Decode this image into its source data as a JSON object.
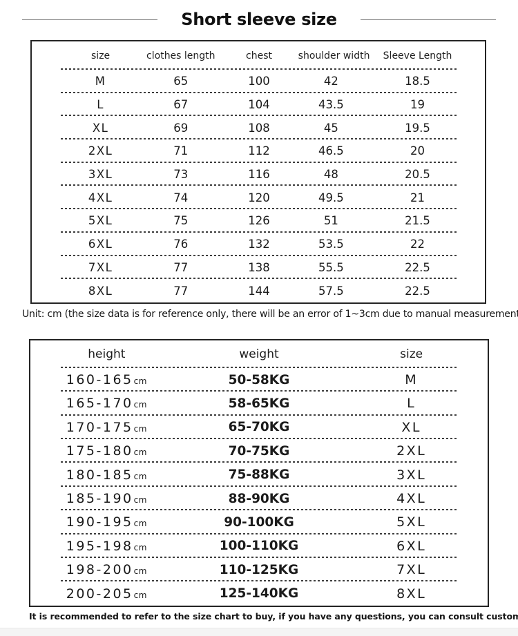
{
  "page": {
    "title": "Short sleeve size",
    "background": "#ffffff",
    "text_color": "#1b1b1b",
    "border_color": "#242424",
    "divider_color": "#8f8f8f",
    "bottom_strip_color": "#f4f4f4"
  },
  "size_table": {
    "headers": [
      "size",
      "clothes length",
      "chest",
      "shoulder width",
      "Sleeve Length"
    ],
    "rows": [
      [
        "M",
        "65",
        "100",
        "42",
        "18.5"
      ],
      [
        "L",
        "67",
        "104",
        "43.5",
        "19"
      ],
      [
        "XL",
        "69",
        "108",
        "45",
        "19.5"
      ],
      [
        "2XL",
        "71",
        "112",
        "46.5",
        "20"
      ],
      [
        "3XL",
        "73",
        "116",
        "48",
        "20.5"
      ],
      [
        "4XL",
        "74",
        "120",
        "49.5",
        "21"
      ],
      [
        "5XL",
        "75",
        "126",
        "51",
        "21.5"
      ],
      [
        "6XL",
        "76",
        "132",
        "53.5",
        "22"
      ],
      [
        "7XL",
        "77",
        "138",
        "55.5",
        "22.5"
      ],
      [
        "8XL",
        "77",
        "144",
        "57.5",
        "22.5"
      ]
    ],
    "unit_note": "Unit: cm (the size data is for reference only, there will be an error of 1~3cm due to manual measurement)"
  },
  "fit_table": {
    "headers": [
      "height",
      "weight",
      "size"
    ],
    "rows": [
      {
        "height_range": "160-165",
        "height_unit": "cm",
        "weight": "50-58KG",
        "size": "M"
      },
      {
        "height_range": "165-170",
        "height_unit": "cm",
        "weight": "58-65KG",
        "size": "L"
      },
      {
        "height_range": "170-175",
        "height_unit": "cm",
        "weight": "65-70KG",
        "size": "XL"
      },
      {
        "height_range": "175-180",
        "height_unit": "cm",
        "weight": "70-75KG",
        "size": "2XL"
      },
      {
        "height_range": "180-185",
        "height_unit": "cm",
        "weight": "75-88KG",
        "size": "3XL"
      },
      {
        "height_range": "185-190",
        "height_unit": "cm",
        "weight": "88-90KG",
        "size": "4XL"
      },
      {
        "height_range": "190-195",
        "height_unit": "cm",
        "weight": "90-100KG",
        "size": "5XL"
      },
      {
        "height_range": "195-198",
        "height_unit": "cm",
        "weight": "100-110KG",
        "size": "6XL"
      },
      {
        "height_range": "198-200",
        "height_unit": "cm",
        "weight": "110-125KG",
        "size": "7XL"
      },
      {
        "height_range": "200-205",
        "height_unit": "cm",
        "weight": "125-140KG",
        "size": "8XL"
      }
    ],
    "footer_note": "It is recommended to refer to the size chart to buy, if you have any questions, you can consult customer service!"
  }
}
